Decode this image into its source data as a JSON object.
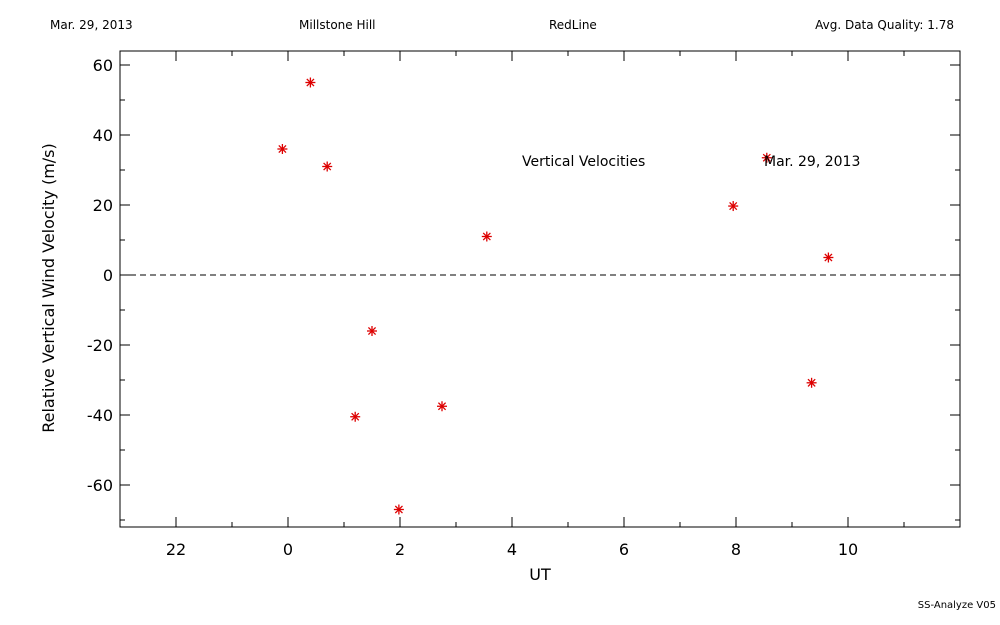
{
  "header": {
    "date": "Mar. 29, 2013",
    "site": "Millstone Hill",
    "instrument": "RedLine",
    "quality": "Avg. Data Quality: 1.78"
  },
  "footer": {
    "software": "SS-Analyze V05"
  },
  "chart_data": {
    "type": "scatter",
    "annotation_title": "Vertical Velocities",
    "annotation_date": "Mar. 29, 2013",
    "xlabel": "UT",
    "ylabel": "Relative Vertical Wind Velocity (m/s)",
    "x_tick_labels": [
      "22",
      "0",
      "2",
      "4",
      "6",
      "8",
      "10"
    ],
    "x_tick_values": [
      22,
      24,
      26,
      28,
      30,
      32,
      34
    ],
    "y_tick_values": [
      -60,
      -40,
      -20,
      0,
      20,
      40,
      60
    ],
    "xlim": [
      21,
      36
    ],
    "ylim": [
      -72,
      64
    ],
    "zero_line": true,
    "marker": "asterisk",
    "marker_color": "#dd0000",
    "points": [
      {
        "x": 23.9,
        "y": 36
      },
      {
        "x": 24.4,
        "y": 55
      },
      {
        "x": 24.7,
        "y": 31
      },
      {
        "x": 25.2,
        "y": -40.5
      },
      {
        "x": 25.5,
        "y": -16
      },
      {
        "x": 25.98,
        "y": -67
      },
      {
        "x": 26.75,
        "y": -37.5
      },
      {
        "x": 27.55,
        "y": 11
      },
      {
        "x": 31.95,
        "y": 19.7
      },
      {
        "x": 32.55,
        "y": 33.5
      },
      {
        "x": 33.35,
        "y": -30.8
      },
      {
        "x": 33.65,
        "y": 5
      }
    ]
  }
}
